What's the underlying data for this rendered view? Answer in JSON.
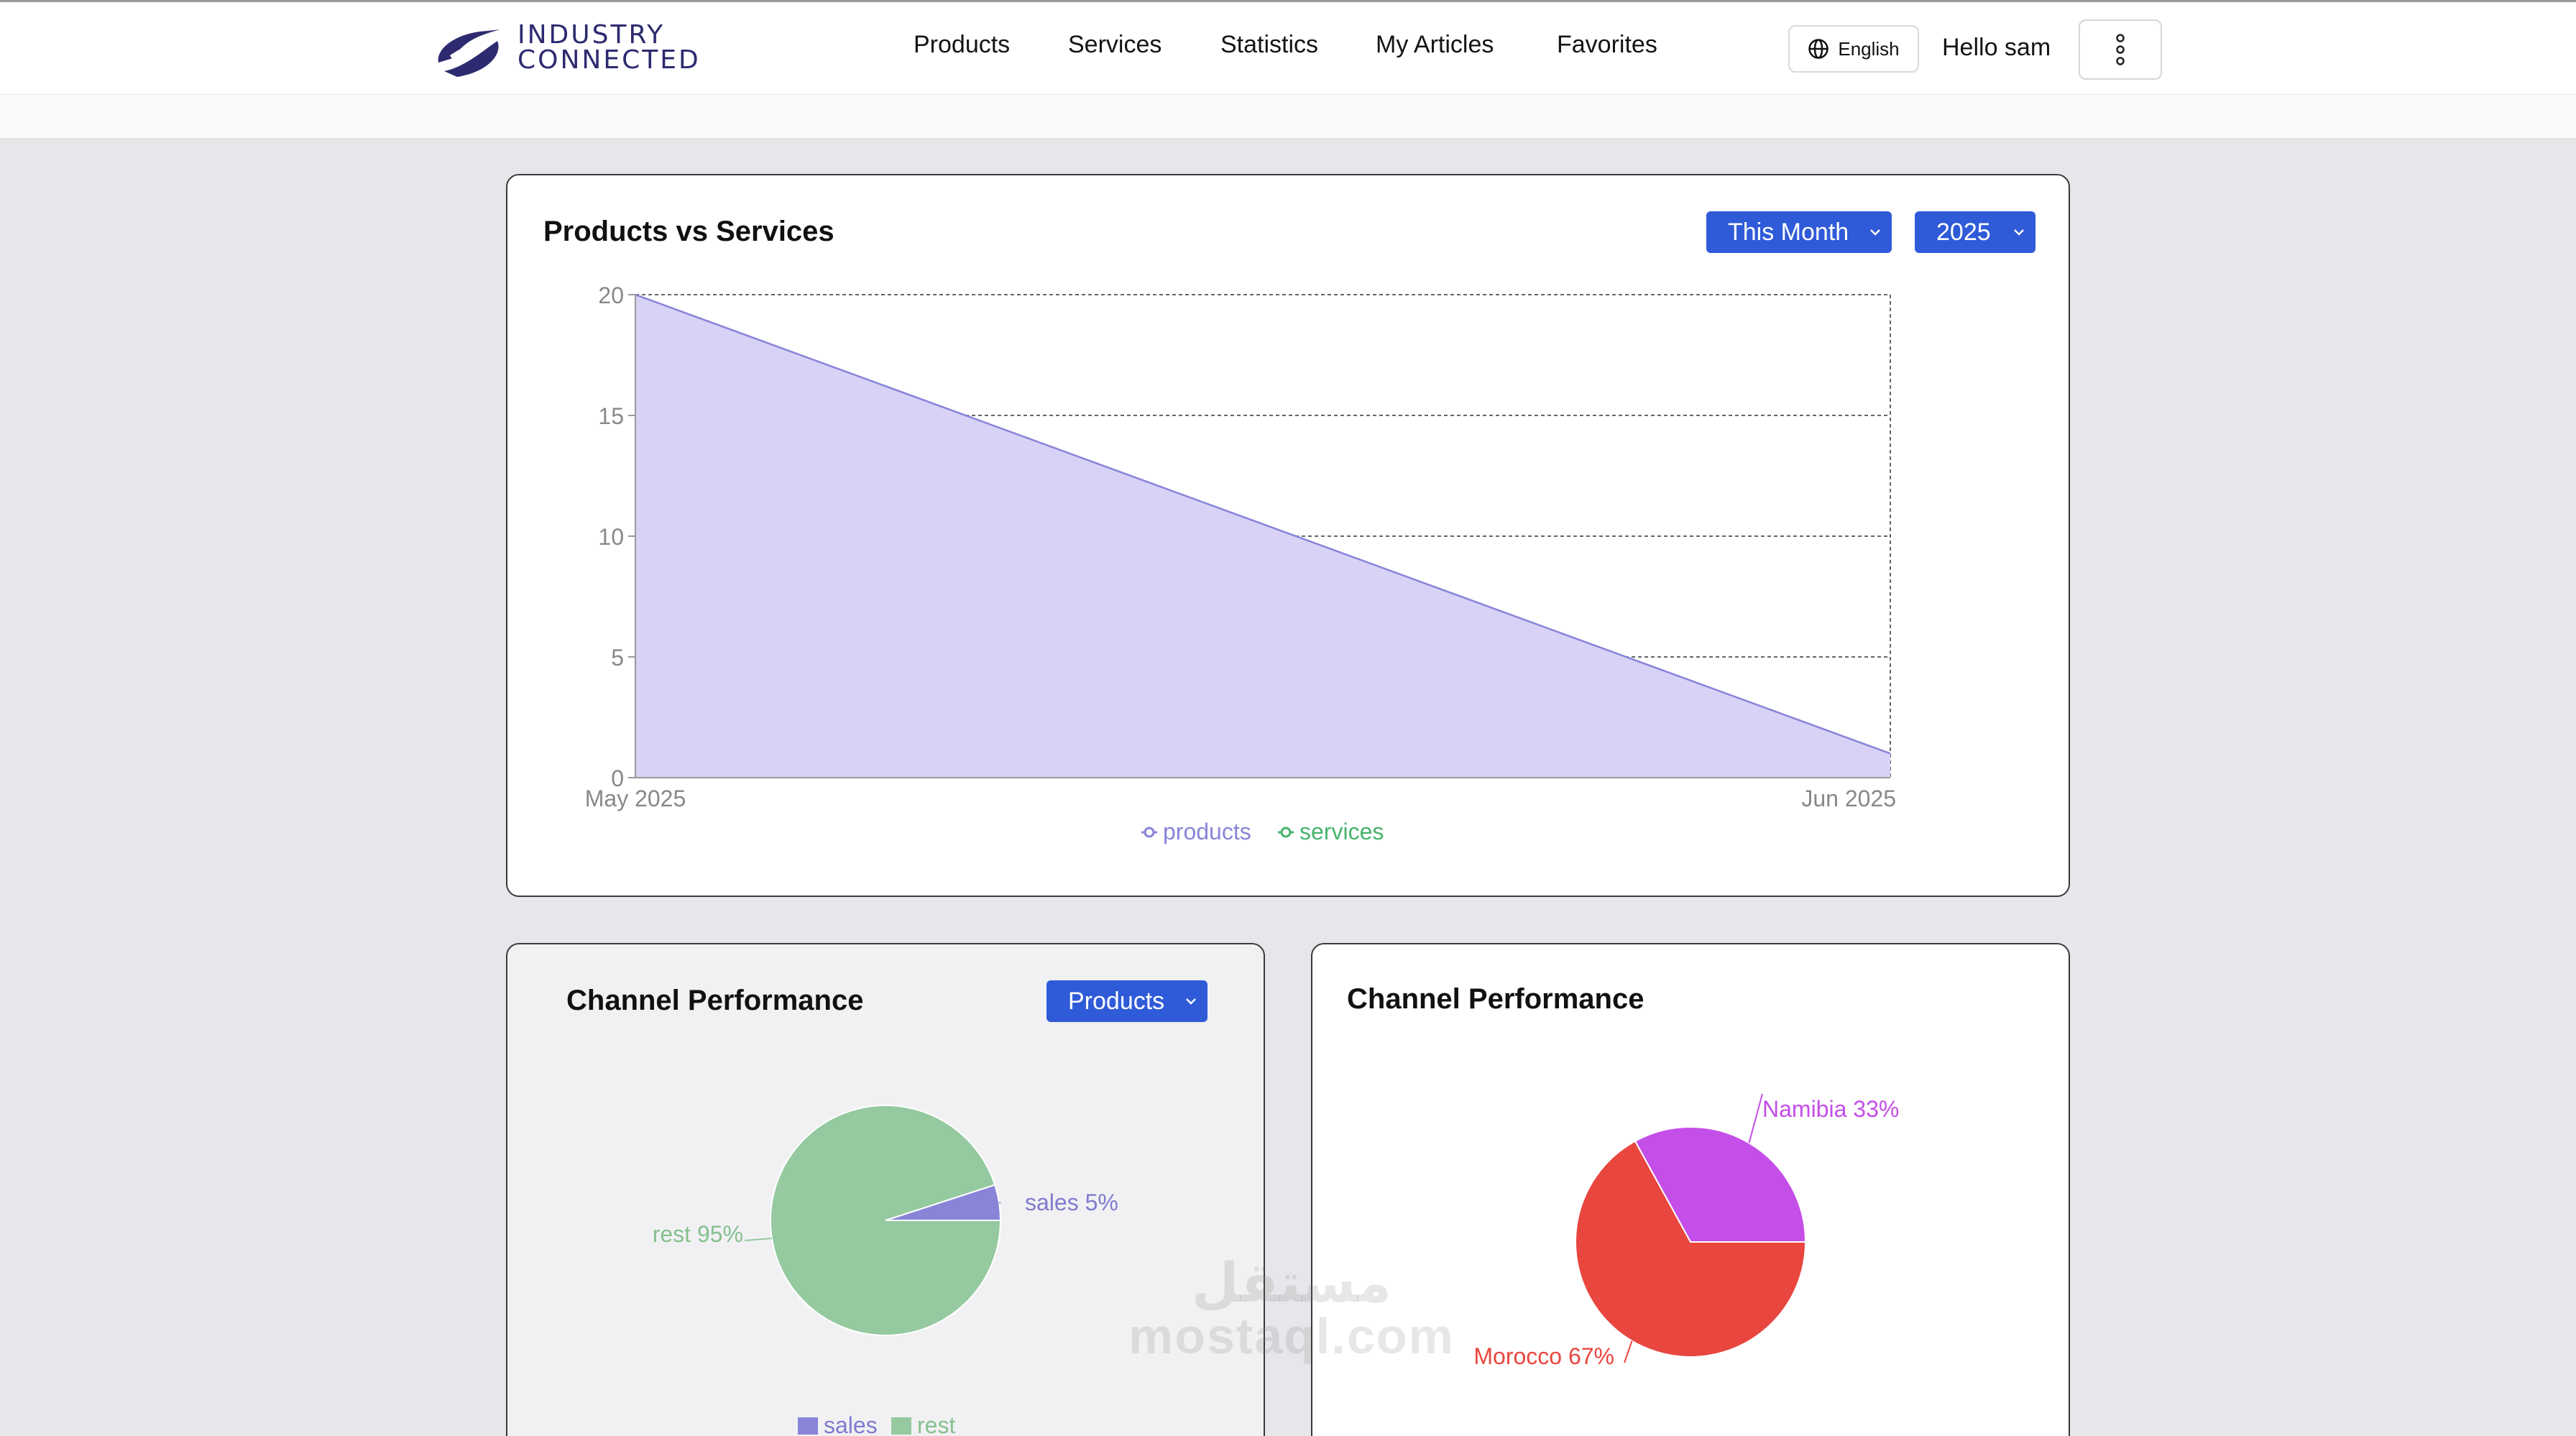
{
  "header": {
    "logo_line1": "INDUSTRY",
    "logo_line2": "CONNECTED",
    "nav": [
      "Products",
      "Services",
      "Statistics",
      "My Articles",
      "Favorites"
    ],
    "language": "English",
    "greeting": "Hello sam"
  },
  "main_chart_card": {
    "title": "Products vs Services",
    "period_select": "This Month",
    "year_select": "2025"
  },
  "channel_left": {
    "title": "Channel Performance",
    "select": "Products"
  },
  "channel_right": {
    "title": "Channel Performance"
  },
  "watermark": {
    "arabic": "مستقل",
    "latin": "mostaql.com"
  },
  "colors": {
    "accent": "#2f5bd8",
    "products": "#8884d8",
    "services": "#47b36b",
    "sales": "#8884d8",
    "rest": "#95c9a0",
    "namibia": "#c44ee8",
    "morocco": "#e8463f"
  },
  "chart_data": [
    {
      "type": "area",
      "title": "Products vs Services",
      "x": [
        "May 2025",
        "Jun 2025"
      ],
      "series": [
        {
          "name": "products",
          "values": [
            20,
            1
          ]
        },
        {
          "name": "services",
          "values": [
            0,
            0
          ]
        }
      ],
      "yticks": [
        "0",
        "5",
        "10",
        "15",
        "20"
      ],
      "ylim": [
        0,
        20
      ],
      "grid": true,
      "legend": "bottom"
    },
    {
      "type": "pie",
      "title": "Channel Performance",
      "labels": [
        "sales",
        "rest"
      ],
      "values": [
        5,
        95
      ],
      "slice_labels": [
        "sales 5%",
        "rest 95%"
      ],
      "legend": "bottom"
    },
    {
      "type": "pie",
      "title": "Channel Performance",
      "labels": [
        "Namibia",
        "Morocco"
      ],
      "values": [
        33,
        67
      ],
      "slice_labels": [
        "Namibia 33%",
        "Morocco 67%"
      ]
    }
  ]
}
